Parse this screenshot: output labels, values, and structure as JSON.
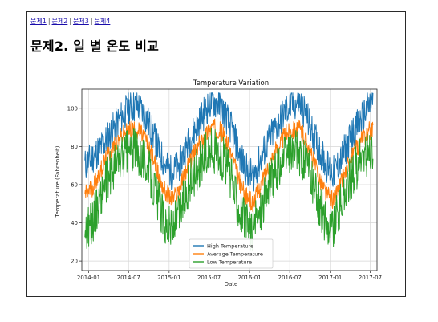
{
  "nav": {
    "links": [
      {
        "label": "문제1"
      },
      {
        "label": "문제2"
      },
      {
        "label": "문제3"
      },
      {
        "label": "문제4"
      }
    ],
    "separator": "|"
  },
  "page": {
    "title": "문제2. 일 별 온도 비교"
  },
  "chart_data": {
    "type": "line",
    "title": "Temperature Variation",
    "xlabel": "Date",
    "ylabel": "Temperature (Fahrenheit)",
    "x_range": [
      "2013-12-01",
      "2017-08-01"
    ],
    "ylim": [
      15,
      110
    ],
    "x_ticks": [
      "2014-01",
      "2014-07",
      "2015-01",
      "2015-07",
      "2016-01",
      "2016-07",
      "2017-01",
      "2017-07"
    ],
    "y_ticks": [
      20,
      40,
      60,
      80,
      100
    ],
    "grid": true,
    "legend_position": "lower-center",
    "series": [
      {
        "name": "High Temperature",
        "color": "#1f77b4",
        "values_by_month": [
          {
            "x": "2013-12",
            "y": 70
          },
          {
            "x": "2014-01",
            "y": 74
          },
          {
            "x": "2014-02",
            "y": 78
          },
          {
            "x": "2014-03",
            "y": 82
          },
          {
            "x": "2014-04",
            "y": 88
          },
          {
            "x": "2014-05",
            "y": 93
          },
          {
            "x": "2014-06",
            "y": 98
          },
          {
            "x": "2014-07",
            "y": 101
          },
          {
            "x": "2014-08",
            "y": 101
          },
          {
            "x": "2014-09",
            "y": 96
          },
          {
            "x": "2014-10",
            "y": 88
          },
          {
            "x": "2014-11",
            "y": 78
          },
          {
            "x": "2014-12",
            "y": 70
          },
          {
            "x": "2015-01",
            "y": 66
          },
          {
            "x": "2015-02",
            "y": 70
          },
          {
            "x": "2015-03",
            "y": 78
          },
          {
            "x": "2015-04",
            "y": 86
          },
          {
            "x": "2015-05",
            "y": 92
          },
          {
            "x": "2015-06",
            "y": 99
          },
          {
            "x": "2015-07",
            "y": 104
          },
          {
            "x": "2015-08",
            "y": 102
          },
          {
            "x": "2015-09",
            "y": 96
          },
          {
            "x": "2015-10",
            "y": 88
          },
          {
            "x": "2015-11",
            "y": 76
          },
          {
            "x": "2015-12",
            "y": 68
          },
          {
            "x": "2016-01",
            "y": 64
          },
          {
            "x": "2016-02",
            "y": 72
          },
          {
            "x": "2016-03",
            "y": 80
          },
          {
            "x": "2016-04",
            "y": 87
          },
          {
            "x": "2016-05",
            "y": 93
          },
          {
            "x": "2016-06",
            "y": 99
          },
          {
            "x": "2016-07",
            "y": 102
          },
          {
            "x": "2016-08",
            "y": 103
          },
          {
            "x": "2016-09",
            "y": 96
          },
          {
            "x": "2016-10",
            "y": 86
          },
          {
            "x": "2016-11",
            "y": 78
          },
          {
            "x": "2016-12",
            "y": 70
          },
          {
            "x": "2017-01",
            "y": 66
          },
          {
            "x": "2017-02",
            "y": 72
          },
          {
            "x": "2017-03",
            "y": 80
          },
          {
            "x": "2017-04",
            "y": 87
          },
          {
            "x": "2017-05",
            "y": 93
          },
          {
            "x": "2017-06",
            "y": 99
          },
          {
            "x": "2017-07",
            "y": 104
          }
        ]
      },
      {
        "name": "Average Temperature",
        "color": "#ff7f0e",
        "values_by_month": [
          {
            "x": "2013-12",
            "y": 55
          },
          {
            "x": "2014-01",
            "y": 58
          },
          {
            "x": "2014-02",
            "y": 65
          },
          {
            "x": "2014-03",
            "y": 72
          },
          {
            "x": "2014-04",
            "y": 78
          },
          {
            "x": "2014-05",
            "y": 83
          },
          {
            "x": "2014-06",
            "y": 87
          },
          {
            "x": "2014-07",
            "y": 89
          },
          {
            "x": "2014-08",
            "y": 88
          },
          {
            "x": "2014-09",
            "y": 84
          },
          {
            "x": "2014-10",
            "y": 76
          },
          {
            "x": "2014-11",
            "y": 64
          },
          {
            "x": "2014-12",
            "y": 56
          },
          {
            "x": "2015-01",
            "y": 52
          },
          {
            "x": "2015-02",
            "y": 57
          },
          {
            "x": "2015-03",
            "y": 66
          },
          {
            "x": "2015-04",
            "y": 74
          },
          {
            "x": "2015-05",
            "y": 80
          },
          {
            "x": "2015-06",
            "y": 86
          },
          {
            "x": "2015-07",
            "y": 90
          },
          {
            "x": "2015-08",
            "y": 89
          },
          {
            "x": "2015-09",
            "y": 84
          },
          {
            "x": "2015-10",
            "y": 74
          },
          {
            "x": "2015-11",
            "y": 62
          },
          {
            "x": "2015-12",
            "y": 54
          },
          {
            "x": "2016-01",
            "y": 50
          },
          {
            "x": "2016-02",
            "y": 58
          },
          {
            "x": "2016-03",
            "y": 67
          },
          {
            "x": "2016-04",
            "y": 75
          },
          {
            "x": "2016-05",
            "y": 81
          },
          {
            "x": "2016-06",
            "y": 87
          },
          {
            "x": "2016-07",
            "y": 89
          },
          {
            "x": "2016-08",
            "y": 89
          },
          {
            "x": "2016-09",
            "y": 83
          },
          {
            "x": "2016-10",
            "y": 73
          },
          {
            "x": "2016-11",
            "y": 63
          },
          {
            "x": "2016-12",
            "y": 55
          },
          {
            "x": "2017-01",
            "y": 52
          },
          {
            "x": "2017-02",
            "y": 60
          },
          {
            "x": "2017-03",
            "y": 68
          },
          {
            "x": "2017-04",
            "y": 76
          },
          {
            "x": "2017-05",
            "y": 82
          },
          {
            "x": "2017-06",
            "y": 87
          },
          {
            "x": "2017-07",
            "y": 90
          }
        ]
      },
      {
        "name": "Low Temperature",
        "color": "#2ca02c",
        "values_by_month": [
          {
            "x": "2013-12",
            "y": 38
          },
          {
            "x": "2014-01",
            "y": 40
          },
          {
            "x": "2014-02",
            "y": 50
          },
          {
            "x": "2014-03",
            "y": 60
          },
          {
            "x": "2014-04",
            "y": 67
          },
          {
            "x": "2014-05",
            "y": 72
          },
          {
            "x": "2014-06",
            "y": 76
          },
          {
            "x": "2014-07",
            "y": 78
          },
          {
            "x": "2014-08",
            "y": 77
          },
          {
            "x": "2014-09",
            "y": 73
          },
          {
            "x": "2014-10",
            "y": 63
          },
          {
            "x": "2014-11",
            "y": 50
          },
          {
            "x": "2014-12",
            "y": 40
          },
          {
            "x": "2015-01",
            "y": 37
          },
          {
            "x": "2015-02",
            "y": 44
          },
          {
            "x": "2015-03",
            "y": 55
          },
          {
            "x": "2015-04",
            "y": 63
          },
          {
            "x": "2015-05",
            "y": 70
          },
          {
            "x": "2015-06",
            "y": 75
          },
          {
            "x": "2015-07",
            "y": 78
          },
          {
            "x": "2015-08",
            "y": 76
          },
          {
            "x": "2015-09",
            "y": 72
          },
          {
            "x": "2015-10",
            "y": 60
          },
          {
            "x": "2015-11",
            "y": 48
          },
          {
            "x": "2015-12",
            "y": 40
          },
          {
            "x": "2016-01",
            "y": 36
          },
          {
            "x": "2016-02",
            "y": 45
          },
          {
            "x": "2016-03",
            "y": 56
          },
          {
            "x": "2016-04",
            "y": 64
          },
          {
            "x": "2016-05",
            "y": 70
          },
          {
            "x": "2016-06",
            "y": 75
          },
          {
            "x": "2016-07",
            "y": 77
          },
          {
            "x": "2016-08",
            "y": 76
          },
          {
            "x": "2016-09",
            "y": 71
          },
          {
            "x": "2016-10",
            "y": 60
          },
          {
            "x": "2016-11",
            "y": 48
          },
          {
            "x": "2016-12",
            "y": 40
          },
          {
            "x": "2017-01",
            "y": 38
          },
          {
            "x": "2017-02",
            "y": 48
          },
          {
            "x": "2017-03",
            "y": 58
          },
          {
            "x": "2017-04",
            "y": 66
          },
          {
            "x": "2017-05",
            "y": 72
          },
          {
            "x": "2017-06",
            "y": 76
          },
          {
            "x": "2017-07",
            "y": 78
          }
        ]
      }
    ]
  }
}
